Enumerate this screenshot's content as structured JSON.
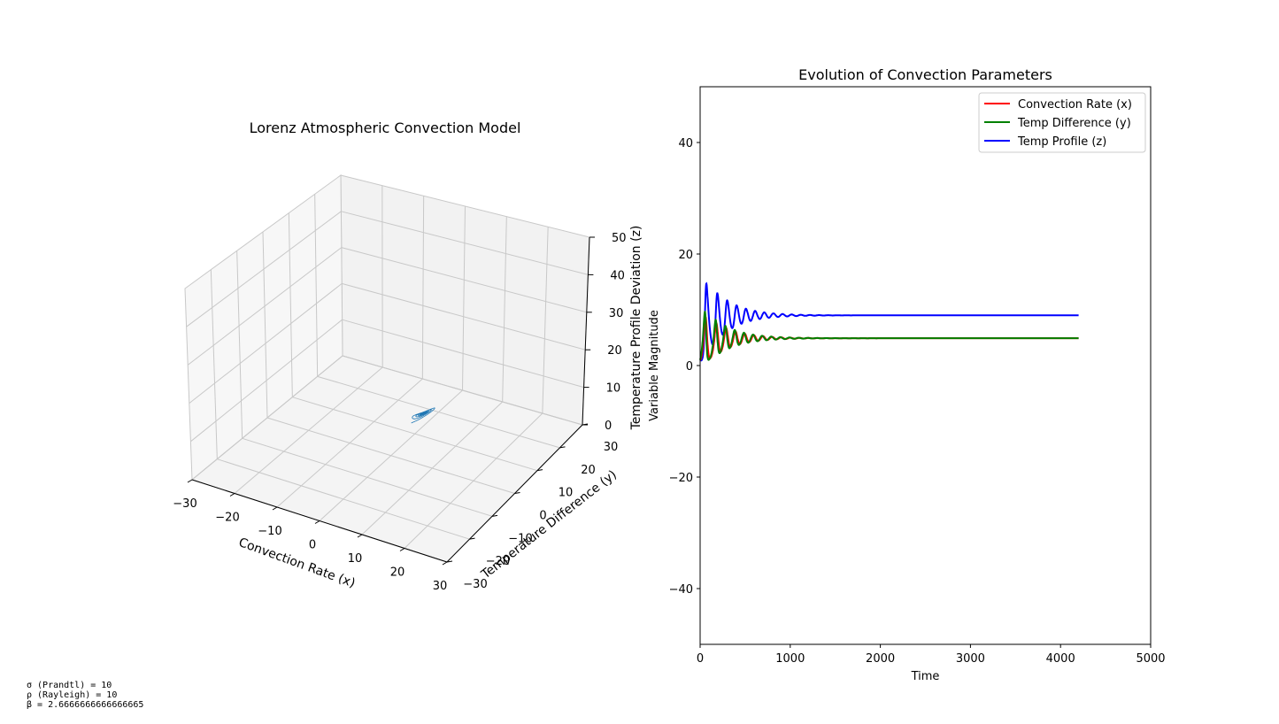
{
  "chart_data": [
    {
      "type": "line3d",
      "title": "Lorenz Atmospheric Convection Model",
      "xlabel": "Convection Rate (x)",
      "ylabel": "Temperature Difference (y)",
      "zlabel": "Temperature Profile Deviation (z)",
      "xlim": [
        -30,
        30
      ],
      "ylim": [
        -30,
        30
      ],
      "zlim": [
        0,
        50
      ],
      "xticks": [
        "−30",
        "−20",
        "−10",
        "0",
        "10",
        "20",
        "30"
      ],
      "yticks": [
        "−30",
        "−20",
        "−10",
        "0",
        "10",
        "20",
        "30"
      ],
      "zticks": [
        "0",
        "10",
        "20",
        "30",
        "40",
        "50"
      ],
      "grid": true,
      "color": "#1f77b4",
      "fixed_point": [
        4.9,
        4.9,
        9.0
      ],
      "start_point": [
        1,
        1,
        1
      ]
    },
    {
      "type": "line",
      "title": "Evolution of Convection Parameters",
      "xlabel": "Time",
      "ylabel": "Variable Magnitude",
      "xlim": [
        0,
        5000
      ],
      "ylim": [
        -50,
        50
      ],
      "xticks": [
        "0",
        "1000",
        "2000",
        "3000",
        "4000",
        "5000"
      ],
      "yticks": [
        "−40",
        "−20",
        "0",
        "20",
        "40"
      ],
      "legend": "top-right",
      "grid": false,
      "x_end": 4200,
      "series": [
        {
          "name": "Convection Rate (x)",
          "color": "#ff0000",
          "final": 4.9,
          "start": 1.0
        },
        {
          "name": "Temp Difference (y)",
          "color": "#008000",
          "final": 4.9,
          "start": 1.0
        },
        {
          "name": "Temp Profile (z)",
          "color": "#0000ff",
          "final": 9.0,
          "start": 1.0,
          "peaks": [
            [
              80,
              14.8
            ],
            [
              190,
              13.0
            ],
            [
              300,
              11.8
            ],
            [
              410,
              10.9
            ],
            [
              515,
              10.3
            ]
          ]
        }
      ]
    }
  ],
  "params": {
    "sigma": "σ (Prandtl) = 10",
    "rho": "ρ (Rayleigh) = 10",
    "beta": "β = 2.6666666666666665"
  }
}
